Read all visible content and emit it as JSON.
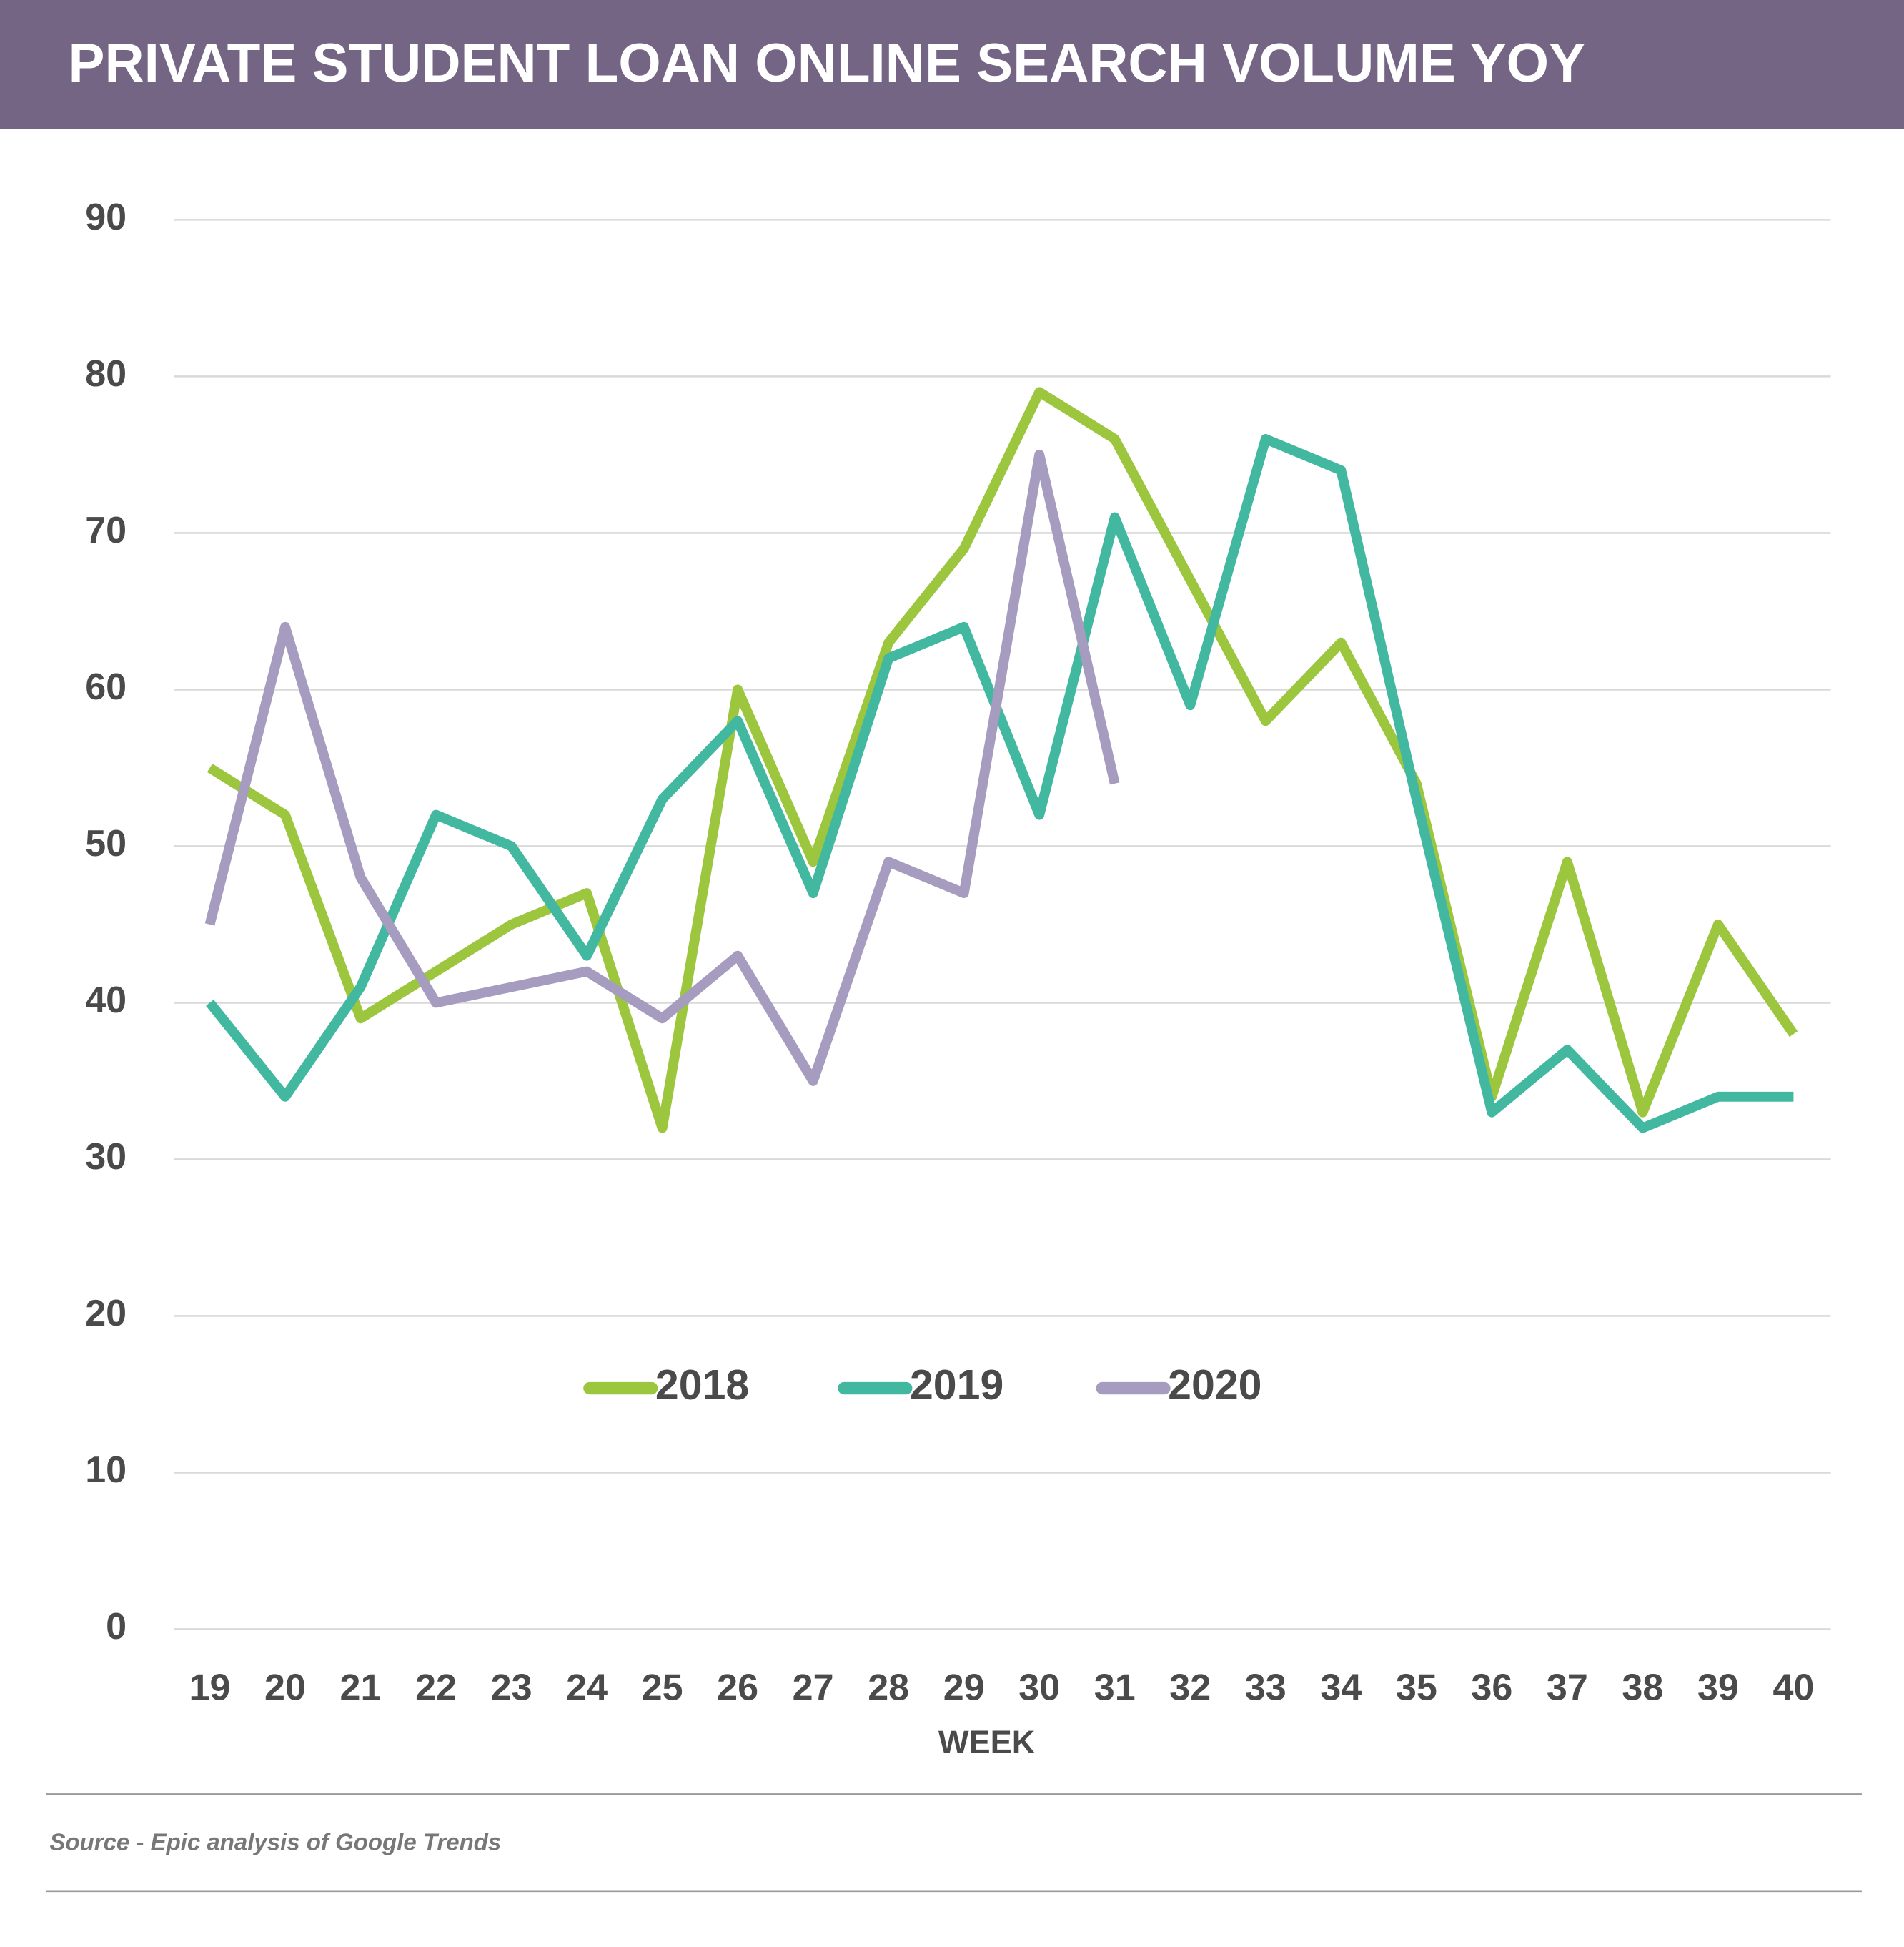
{
  "chart_data": {
    "type": "line",
    "title": "PRIVATE STUDENT LOAN ONLINE SEARCH VOLUME YOY",
    "x_label": "WEEK",
    "source": "Source - Epic analysis of Google Trends",
    "categories": [
      "19",
      "20",
      "21",
      "22",
      "23",
      "24",
      "25",
      "26",
      "27",
      "28",
      "29",
      "30",
      "31",
      "32",
      "33",
      "34",
      "35",
      "36",
      "37",
      "38",
      "39",
      "40"
    ],
    "series": [
      {
        "name": "2018",
        "color": "#9dc63f",
        "values": [
          55,
          52,
          39,
          42,
          45,
          47,
          32,
          60,
          49,
          63,
          69,
          79,
          76,
          67,
          58,
          63,
          54,
          34,
          49,
          33,
          45,
          38
        ]
      },
      {
        "name": "2019",
        "color": "#43b8a0",
        "values": [
          40,
          34,
          41,
          52,
          50,
          43,
          53,
          58,
          47,
          62,
          64,
          52,
          71,
          59,
          76,
          74,
          53,
          33,
          37,
          32,
          34,
          34
        ]
      },
      {
        "name": "2020",
        "color": "#a59cc0",
        "values": [
          45,
          64,
          48,
          40,
          41,
          42,
          39,
          43,
          35,
          49,
          47,
          75,
          54,
          null,
          null,
          null,
          null,
          null,
          null,
          null,
          null,
          null
        ]
      }
    ],
    "ylim": [
      0,
      90
    ],
    "yticks": [
      0,
      10,
      20,
      30,
      40,
      50,
      60,
      70,
      80,
      90
    ],
    "grid": true,
    "legend": "center"
  }
}
